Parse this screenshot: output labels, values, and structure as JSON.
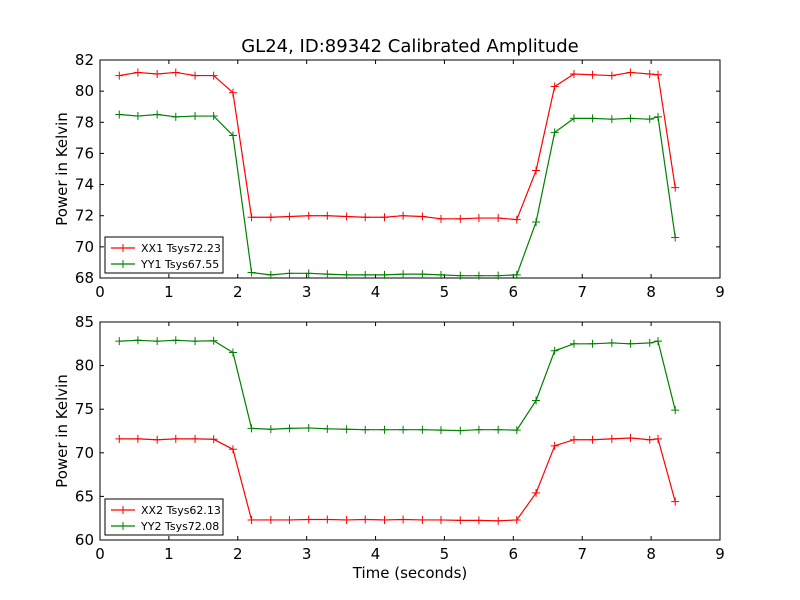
{
  "figure": {
    "title": "GL24, ID:89342 Calibrated Amplitude"
  },
  "chart_data": [
    {
      "type": "line",
      "ylabel": "Power in Kelvin",
      "xlabel": "",
      "xlim": [
        0,
        9
      ],
      "ylim": [
        68,
        82
      ],
      "xticks": [
        0,
        1,
        2,
        3,
        4,
        5,
        6,
        7,
        8,
        9
      ],
      "yticks": [
        68,
        70,
        72,
        74,
        76,
        78,
        80,
        82
      ],
      "grid": false,
      "legend_placement": "lower-left",
      "x": [
        0.28,
        0.55,
        0.83,
        1.1,
        1.38,
        1.65,
        1.93,
        2.2,
        2.48,
        2.75,
        3.03,
        3.3,
        3.58,
        3.85,
        4.13,
        4.4,
        4.68,
        4.95,
        5.23,
        5.5,
        5.78,
        6.05,
        6.33,
        6.6,
        6.88,
        7.15,
        7.43,
        7.7,
        7.98,
        8.1,
        8.35
      ],
      "series": [
        {
          "name": "XX1 Tsys72.23",
          "color": "#ff0000",
          "values": [
            81.0,
            81.2,
            81.1,
            81.2,
            81.0,
            81.0,
            79.9,
            71.9,
            71.9,
            71.95,
            72.0,
            72.0,
            71.95,
            71.9,
            71.9,
            72.0,
            71.95,
            71.8,
            71.8,
            71.85,
            71.85,
            71.75,
            74.9,
            80.3,
            81.1,
            81.05,
            81.0,
            81.2,
            81.1,
            81.05,
            73.8
          ]
        },
        {
          "name": "YY1 Tsys67.55",
          "color": "#008000",
          "values": [
            78.5,
            78.4,
            78.5,
            78.35,
            78.4,
            78.4,
            77.15,
            68.35,
            68.2,
            68.3,
            68.3,
            68.25,
            68.2,
            68.2,
            68.2,
            68.25,
            68.25,
            68.2,
            68.15,
            68.15,
            68.15,
            68.2,
            71.6,
            77.35,
            78.25,
            78.25,
            78.2,
            78.25,
            78.2,
            78.35,
            70.6
          ]
        }
      ]
    },
    {
      "type": "line",
      "ylabel": "Power in Kelvin",
      "xlabel": "Time (seconds)",
      "xlim": [
        0,
        9
      ],
      "ylim": [
        60,
        85
      ],
      "xticks": [
        0,
        1,
        2,
        3,
        4,
        5,
        6,
        7,
        8,
        9
      ],
      "yticks": [
        60,
        65,
        70,
        75,
        80,
        85
      ],
      "grid": false,
      "legend_placement": "lower-left",
      "x": [
        0.28,
        0.55,
        0.83,
        1.1,
        1.38,
        1.65,
        1.93,
        2.2,
        2.48,
        2.75,
        3.03,
        3.3,
        3.58,
        3.85,
        4.13,
        4.4,
        4.68,
        4.95,
        5.23,
        5.5,
        5.78,
        6.05,
        6.33,
        6.6,
        6.88,
        7.15,
        7.43,
        7.7,
        7.98,
        8.1,
        8.35
      ],
      "series": [
        {
          "name": "XX2 Tsys62.13",
          "color": "#ff0000",
          "values": [
            71.6,
            71.6,
            71.5,
            71.6,
            71.6,
            71.55,
            70.4,
            62.3,
            62.3,
            62.3,
            62.35,
            62.35,
            62.3,
            62.35,
            62.3,
            62.35,
            62.3,
            62.3,
            62.25,
            62.25,
            62.2,
            62.3,
            65.4,
            70.8,
            71.5,
            71.5,
            71.6,
            71.7,
            71.5,
            71.6,
            64.4
          ]
        },
        {
          "name": "YY2 Tsys72.08",
          "color": "#008000",
          "values": [
            82.8,
            82.9,
            82.8,
            82.9,
            82.8,
            82.85,
            81.5,
            72.8,
            72.7,
            72.8,
            72.85,
            72.75,
            72.7,
            72.65,
            72.65,
            72.65,
            72.65,
            72.6,
            72.55,
            72.65,
            72.65,
            72.6,
            76.0,
            81.7,
            82.5,
            82.5,
            82.6,
            82.5,
            82.6,
            82.8,
            74.9
          ]
        }
      ]
    }
  ]
}
